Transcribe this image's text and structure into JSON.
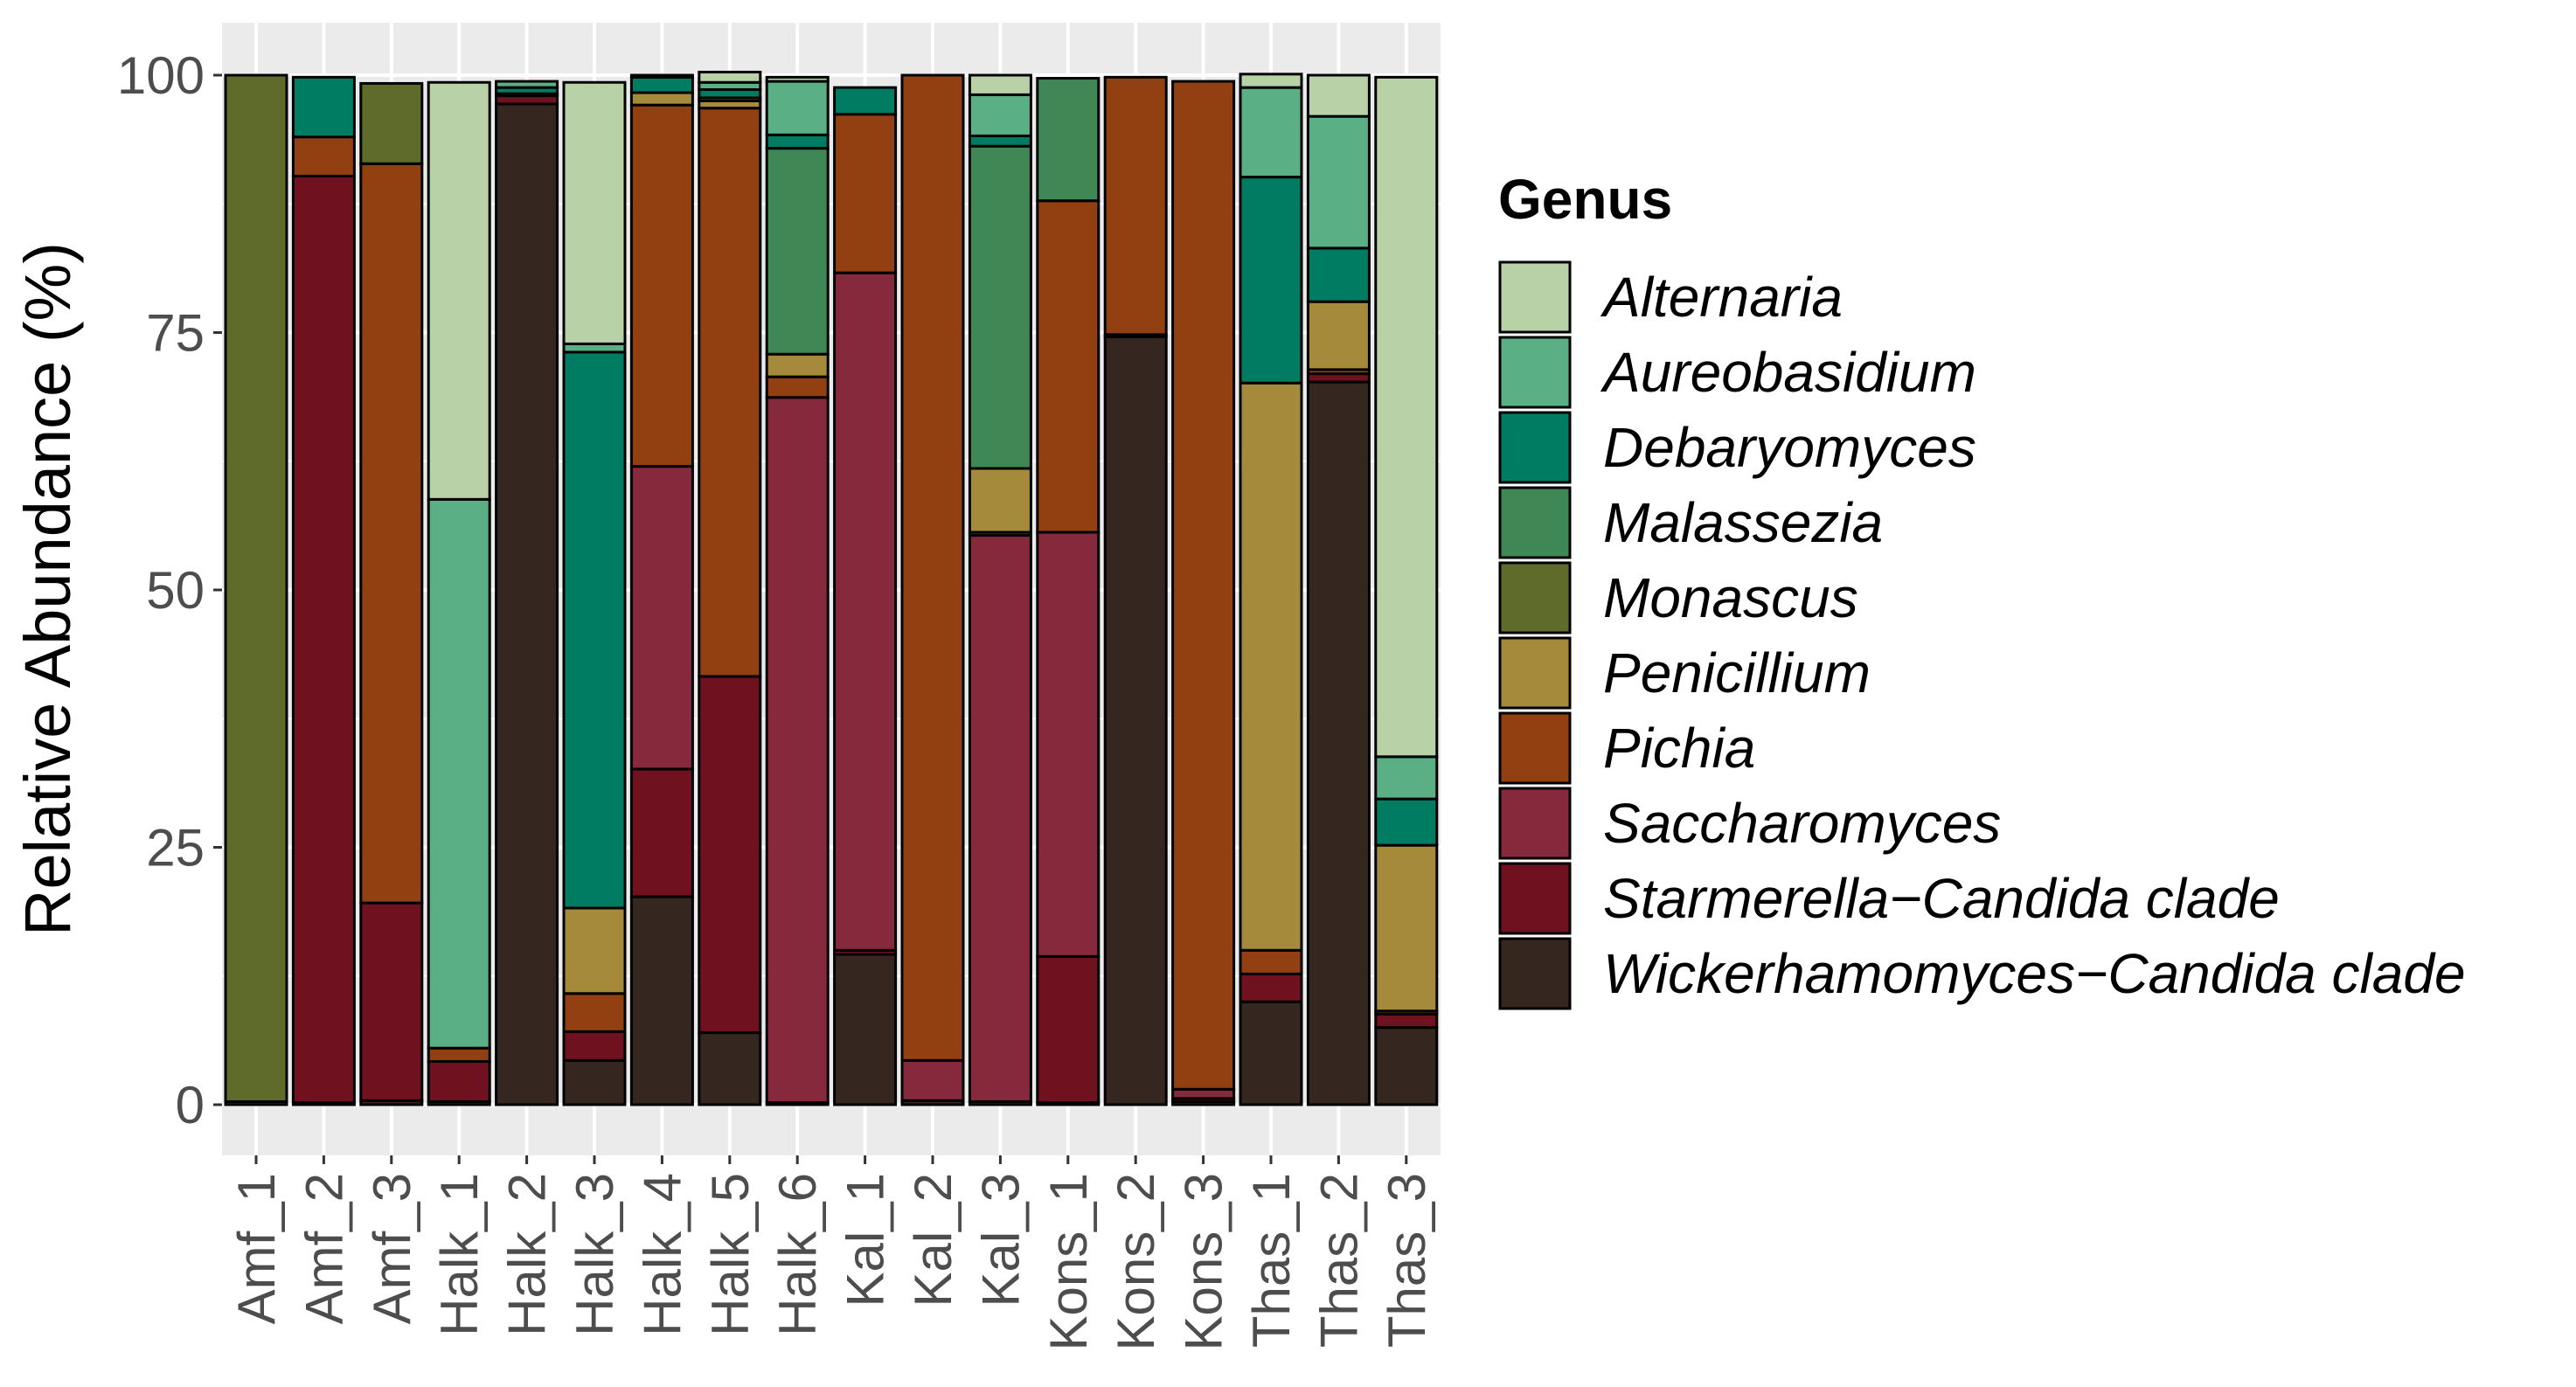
{
  "chart_data": {
    "type": "bar",
    "stacked": true,
    "ylabel": "Relative Abundance (%)",
    "xlabel": "",
    "ylim": [
      0,
      100
    ],
    "yticks": [
      0,
      25,
      50,
      75,
      100
    ],
    "grid": true,
    "legend_position": "right",
    "legend_title": "Genus",
    "categories": [
      "Amf_1",
      "Amf_2",
      "Amf_3",
      "Halk_1",
      "Halk_2",
      "Halk_3",
      "Halk_4",
      "Halk_5",
      "Halk_6",
      "Kal_1",
      "Kal_2",
      "Kal_3",
      "Kons_1",
      "Kons_2",
      "Kons_3",
      "Thas_1",
      "Thas_2",
      "Thas_3"
    ],
    "series": [
      {
        "name": "Wickerhamomyces−Candida clade",
        "color": "#35261f",
        "values": [
          0.3,
          0.2,
          0.4,
          0.3,
          97.2,
          4.3,
          20.2,
          7.0,
          0.2,
          14.6,
          0.4,
          0.3,
          0.2,
          74.6,
          0.3,
          10.0,
          70.2,
          7.5
        ]
      },
      {
        "name": "Starmerella−Candida clade",
        "color": "#6f111f",
        "values": [
          0.0,
          90.0,
          19.2,
          3.9,
          0.8,
          2.8,
          12.4,
          34.6,
          0.0,
          0.4,
          0.0,
          0.0,
          14.2,
          0.2,
          0.3,
          2.7,
          0.8,
          1.3
        ]
      },
      {
        "name": "Saccharomyces",
        "color": "#86293d",
        "values": [
          0.0,
          0.0,
          0.0,
          0.0,
          0.0,
          0.0,
          29.4,
          0.0,
          68.5,
          65.8,
          3.9,
          55.0,
          41.2,
          0.0,
          0.9,
          0.0,
          0.0,
          0.0
        ]
      },
      {
        "name": "Pichia",
        "color": "#924012",
        "values": [
          0.0,
          3.8,
          71.8,
          1.3,
          0.2,
          3.7,
          35.1,
          55.2,
          2.0,
          15.4,
          95.7,
          0.3,
          32.2,
          25.0,
          97.9,
          2.3,
          0.4,
          0.3
        ]
      },
      {
        "name": "Penicillium",
        "color": "#a68a3c",
        "values": [
          0.0,
          0.0,
          0.0,
          0.0,
          0.0,
          8.3,
          1.2,
          0.7,
          2.2,
          0.0,
          0.0,
          6.2,
          0.0,
          0.0,
          0.0,
          55.1,
          6.6,
          16.1
        ]
      },
      {
        "name": "Monascus",
        "color": "#5f6b2b",
        "values": [
          99.7,
          0.0,
          7.8,
          0.0,
          0.0,
          0.0,
          0.0,
          0.3,
          0.0,
          0.0,
          0.0,
          0.0,
          0.0,
          0.0,
          0.0,
          0.0,
          0.0,
          0.0
        ]
      },
      {
        "name": "Malassezia",
        "color": "#3f8755",
        "values": [
          0.0,
          0.0,
          0.0,
          0.0,
          0.0,
          0.0,
          0.0,
          0.0,
          20.0,
          0.0,
          0.0,
          31.3,
          11.9,
          0.0,
          0.0,
          0.0,
          0.0,
          0.0
        ]
      },
      {
        "name": "Debaryomyces",
        "color": "#007c62",
        "values": [
          0.0,
          5.8,
          0.0,
          0.0,
          0.6,
          54.0,
          1.5,
          0.8,
          1.3,
          2.6,
          0.0,
          1.0,
          0.0,
          0.0,
          0.0,
          20.0,
          5.2,
          4.5
        ]
      },
      {
        "name": "Aureobasidium",
        "color": "#5aaf85",
        "values": [
          0.0,
          0.0,
          0.0,
          53.3,
          0.6,
          0.8,
          0.2,
          0.7,
          5.2,
          0.0,
          0.0,
          4.0,
          0.0,
          0.0,
          0.0,
          8.7,
          12.8,
          4.1
        ]
      },
      {
        "name": "Alternaria",
        "color": "#b8d1a6",
        "values": [
          0.0,
          0.0,
          0.0,
          40.5,
          0.0,
          25.4,
          0.0,
          1.0,
          0.4,
          0.0,
          0.0,
          1.9,
          0.0,
          0.0,
          0.0,
          1.3,
          4.0,
          66.0
        ]
      }
    ],
    "legend_order": [
      "Alternaria",
      "Aureobasidium",
      "Debaryomyces",
      "Malassezia",
      "Monascus",
      "Penicillium",
      "Pichia",
      "Saccharomyces",
      "Starmerella−Candida clade",
      "Wickerhamomyces−Candida clade"
    ]
  }
}
